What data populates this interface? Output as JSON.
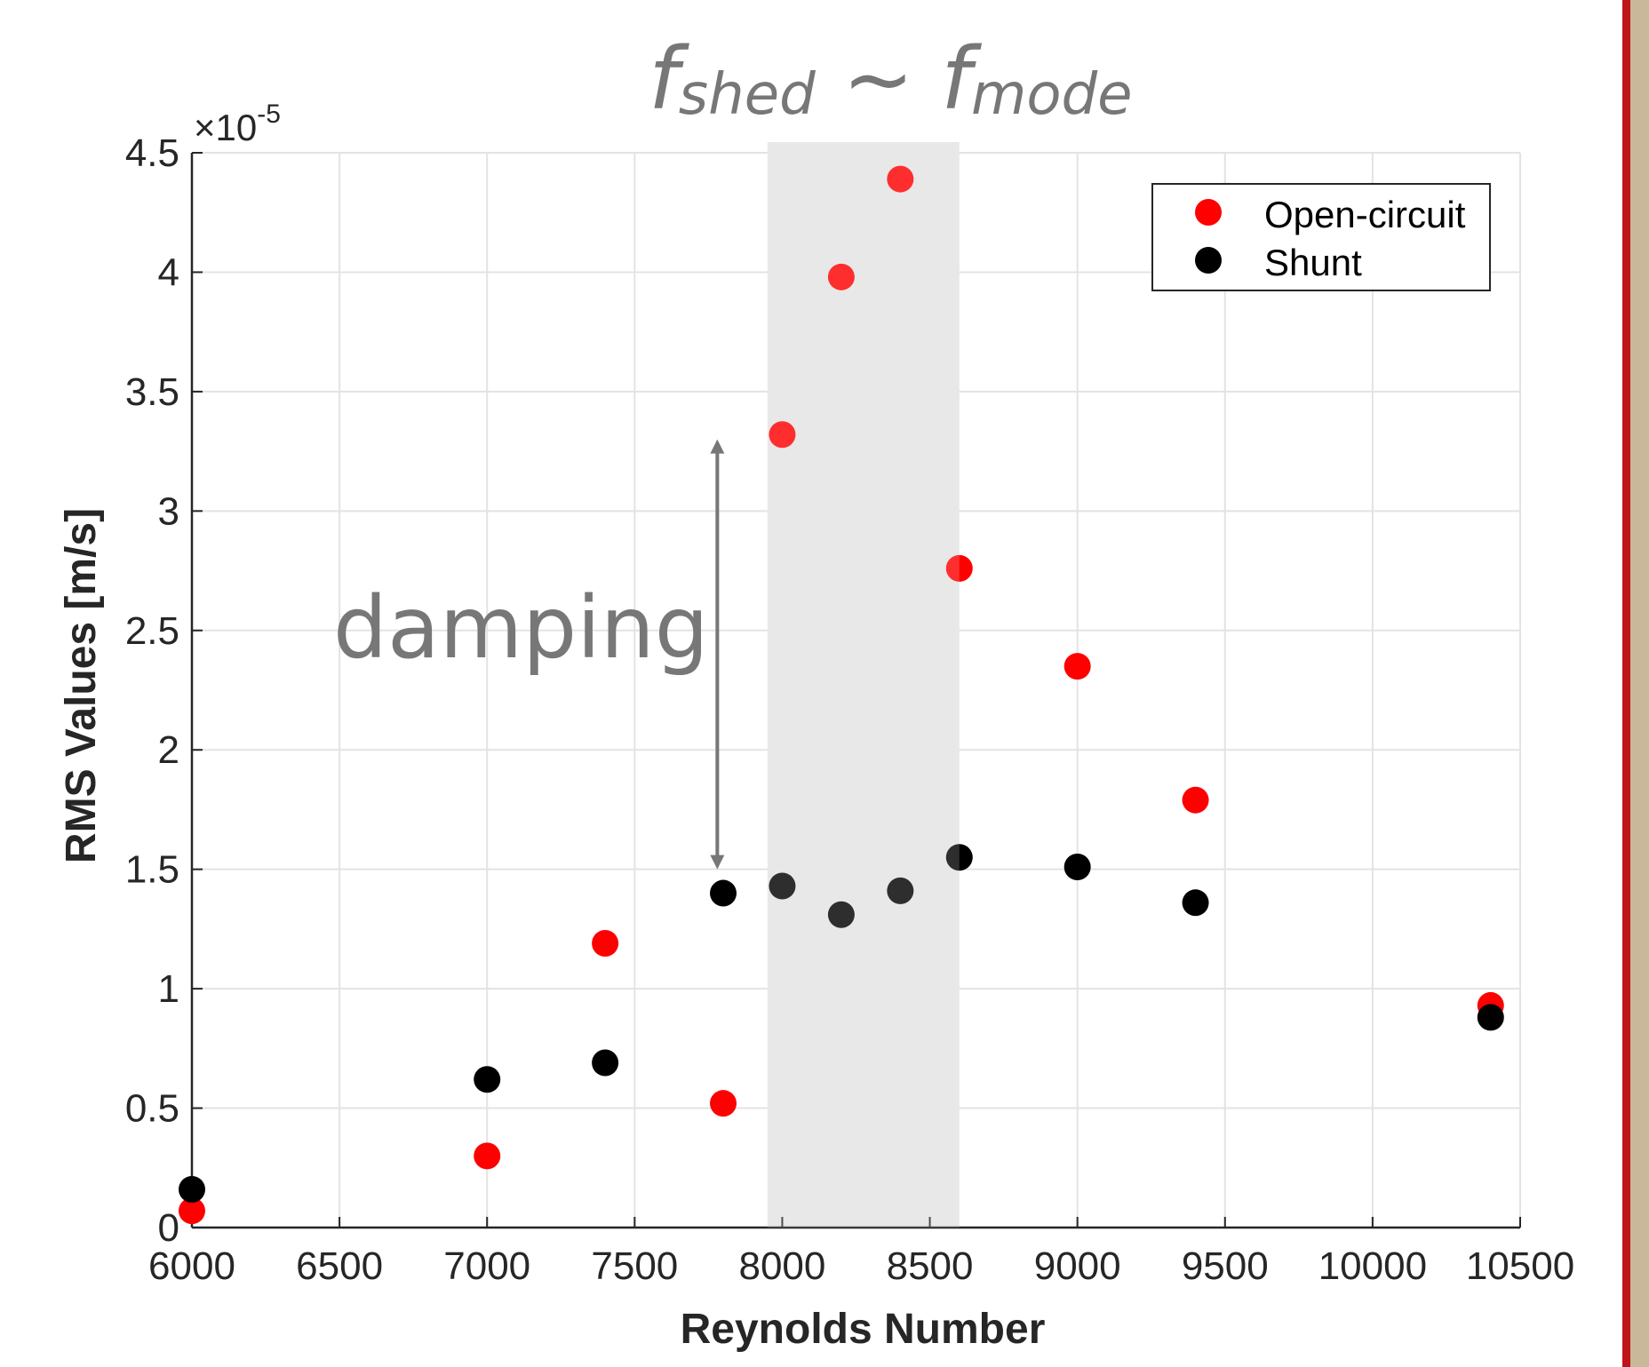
{
  "chart_data": {
    "type": "scatter",
    "title": "",
    "xlabel": "Reynolds Number",
    "ylabel": "RMS Values [m/s]",
    "xlim": [
      6000,
      10500
    ],
    "ylim": [
      0,
      4.5
    ],
    "x_ticks": [
      "6000",
      "6500",
      "7000",
      "7500",
      "8000",
      "8500",
      "9000",
      "9500",
      "10000",
      "10500"
    ],
    "y_ticks": [
      "0",
      "0.5",
      "1",
      "1.5",
      "2",
      "2.5",
      "3",
      "3.5",
      "4",
      "4.5"
    ],
    "y_exponent": {
      "base": "×10",
      "power": "-5"
    },
    "grid": true,
    "legend_position": "top-right",
    "series": [
      {
        "name": "Open-circuit",
        "color": "#ff0000",
        "x": [
          6000,
          7000,
          7400,
          7800,
          8000,
          8200,
          8400,
          8600,
          9000,
          9400,
          10400
        ],
        "y": [
          0.07,
          0.3,
          1.19,
          0.52,
          3.32,
          3.98,
          4.39,
          2.76,
          2.35,
          1.79,
          0.93
        ]
      },
      {
        "name": "Shunt",
        "color": "#000000",
        "x": [
          6000,
          7000,
          7400,
          7800,
          8000,
          8200,
          8400,
          8600,
          9000,
          9400,
          10400
        ],
        "y": [
          0.16,
          0.62,
          0.69,
          1.4,
          1.43,
          1.31,
          1.41,
          1.55,
          1.51,
          1.36,
          0.88
        ]
      }
    ],
    "shaded_region": {
      "x_range": [
        7950,
        8600
      ],
      "color": "#d9d9d9"
    },
    "annotations": {
      "damping_label": "damping",
      "damping_arrow_x": 7780,
      "damping_arrow_y": [
        1.5,
        3.3
      ],
      "top_f1": "f",
      "top_sub1": "shed",
      "top_tilde": " ~ ",
      "top_f2": "f",
      "top_sub2": "mode"
    }
  }
}
